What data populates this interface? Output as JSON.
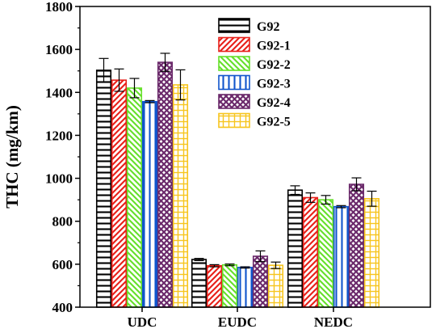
{
  "chart_data": {
    "type": "bar",
    "title": "",
    "xlabel": "",
    "ylabel": "THC (mg/km)",
    "ylim": [
      400,
      1800
    ],
    "yticks": [
      400,
      600,
      800,
      1000,
      1200,
      1400,
      1600,
      1800
    ],
    "categories": [
      "UDC",
      "EUDC",
      "NEDC"
    ],
    "grid": false,
    "legend_position": "top-center",
    "series": [
      {
        "name": "G92",
        "color": "#000000",
        "pattern": "horizontal-lines",
        "values": [
          1503,
          622,
          945
        ],
        "errors": [
          55,
          5,
          20
        ]
      },
      {
        "name": "G92-1",
        "color": "#e8201a",
        "pattern": "forward-diagonal",
        "values": [
          1457,
          593,
          910
        ],
        "errors": [
          52,
          5,
          22
        ]
      },
      {
        "name": "G92-2",
        "color": "#66e02b",
        "pattern": "back-diagonal",
        "values": [
          1420,
          597,
          900
        ],
        "errors": [
          45,
          4,
          20
        ]
      },
      {
        "name": "G92-3",
        "color": "#1155cc",
        "pattern": "vertical-lines",
        "values": [
          1357,
          585,
          868
        ],
        "errors": [
          5,
          3,
          5
        ]
      },
      {
        "name": "G92-4",
        "color": "#6b2a6b",
        "pattern": "cross-hatch",
        "values": [
          1540,
          637,
          972
        ],
        "errors": [
          42,
          25,
          30
        ]
      },
      {
        "name": "G92-5",
        "color": "#f7c51e",
        "pattern": "grid",
        "values": [
          1435,
          595,
          905
        ],
        "errors": [
          70,
          15,
          35
        ]
      }
    ]
  }
}
